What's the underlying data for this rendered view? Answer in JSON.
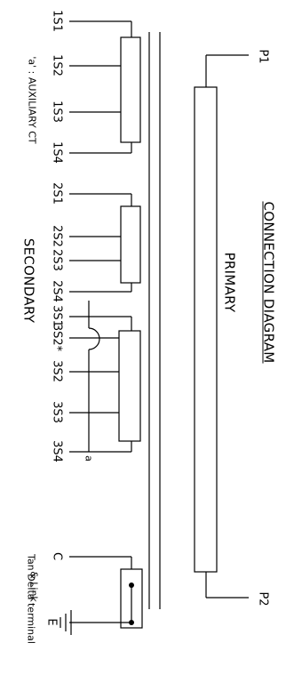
{
  "title": "CONNECTION DIAGRAM",
  "primary_label": "PRIMARY",
  "secondary_label": "SECONDARY",
  "auxiliary_note": "'a' : AUXILIARY CT",
  "primary_terminals": [
    "P1",
    "P2"
  ],
  "secondary_terminals": [
    "1S1",
    "1S2",
    "1S3",
    "1S4",
    "2S1",
    "2S2",
    "2S3",
    "2S4",
    "3S1",
    "3S2*",
    "3S2",
    "3S3",
    "3S4"
  ],
  "aux_tap_label": "a",
  "tan_delta": {
    "terminals": [
      "C",
      "E"
    ],
    "label_line1": "Tan Delta terminal",
    "label_line2": "& Link"
  }
}
